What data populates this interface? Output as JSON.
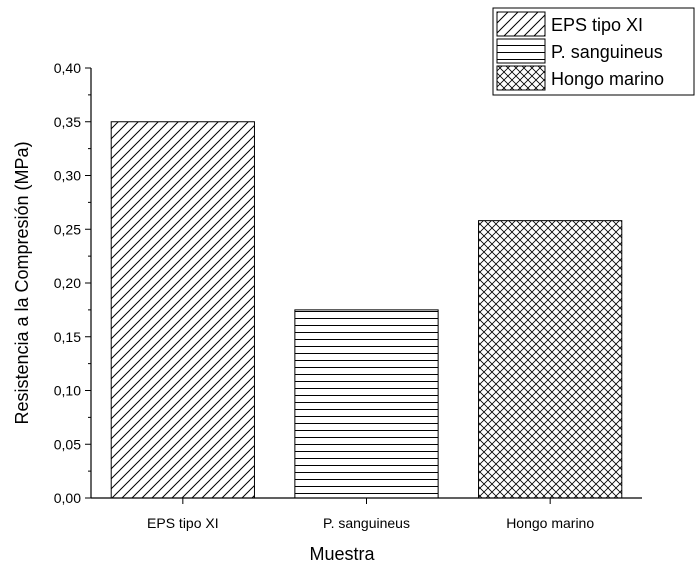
{
  "chart_data": {
    "type": "bar",
    "categories": [
      "EPS tipo XI",
      "P. sanguineus",
      "Hongo marino"
    ],
    "values": [
      0.35,
      0.175,
      0.258
    ],
    "xlabel": "Muestra",
    "ylabel": "Resistencia a la Compresión (MPa)",
    "ylim": [
      0,
      0.4
    ],
    "yticks": [
      "0,00",
      "0,05",
      "0,10",
      "0,15",
      "0,20",
      "0,25",
      "0,30",
      "0,35",
      "0,40"
    ],
    "patterns": [
      "diagonal-hatch",
      "horizontal-lines",
      "crosshatch"
    ],
    "legend": {
      "placement": "top-right",
      "entries": [
        "EPS tipo XI",
        "P. sanguineus",
        "Hongo marino"
      ]
    },
    "grid": false,
    "colors": {
      "stroke": "#000000",
      "fill": "#ffffff"
    }
  }
}
